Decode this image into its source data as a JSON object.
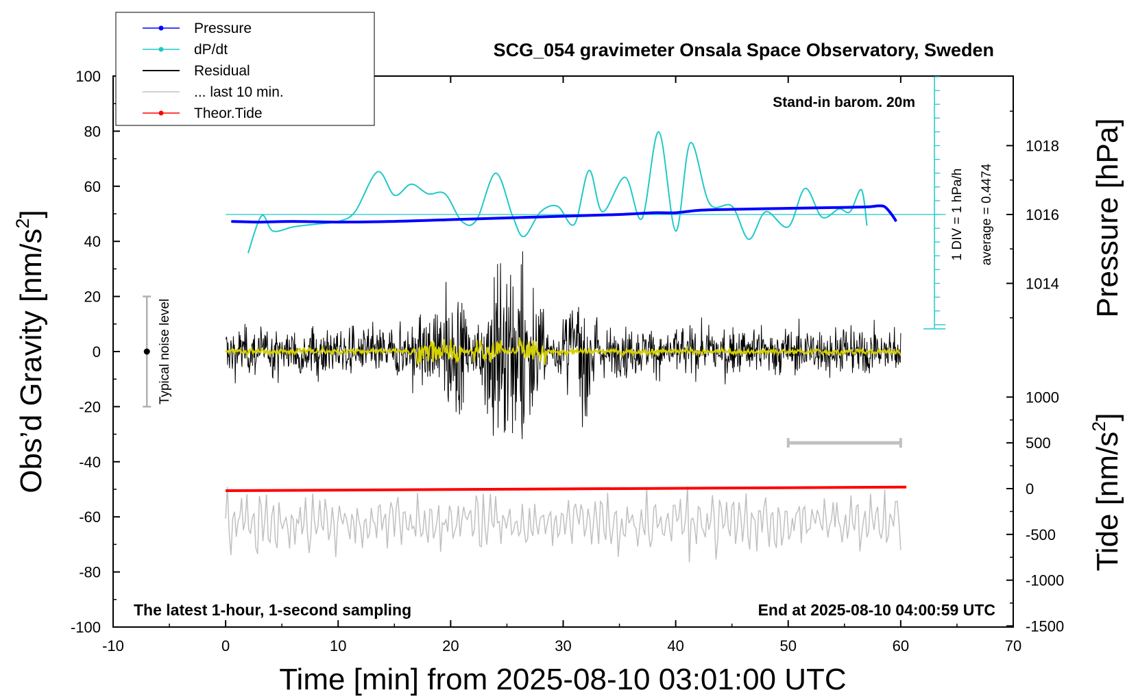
{
  "chart_data": {
    "type": "line",
    "title": "SCG_054 gravimeter Onsala Space Observatory, Sweden",
    "xlabel": "Time [min] from 2025-08-10 03:01:00 UTC",
    "ylabel_left_main": "Obs’d Gravity [nm/s",
    "ylabel_left_sup": "2",
    "ylabel_left_end": "]",
    "ylabel_right_top": "Pressure [hPa]",
    "ylabel_right_bottom_main": "Tide [nm/s",
    "ylabel_right_bottom_sup": "2",
    "ylabel_right_bottom_end": "]",
    "xlim": [
      -10,
      70
    ],
    "ylim": [
      -100,
      100
    ],
    "x_ticks": [
      "-10",
      "0",
      "10",
      "20",
      "30",
      "40",
      "50",
      "60",
      "70"
    ],
    "y_ticks": [
      "100",
      "80",
      "60",
      "40",
      "20",
      "0",
      "-20",
      "-40",
      "-60",
      "-80",
      "-100"
    ],
    "pressure_ticks": [
      "1018",
      "1016",
      "1014"
    ],
    "tide_ticks": [
      "1000",
      "500",
      "0",
      "-500",
      "-1000",
      "-1500"
    ],
    "grid": false,
    "legend_position": "top-left",
    "legend": [
      {
        "name": "Pressure",
        "color": "#0000ff",
        "marker": true
      },
      {
        "name": "dP/dt",
        "color": "#1fc8c8",
        "marker": true
      },
      {
        "name": "Residual",
        "color": "#000000",
        "marker": false
      },
      {
        "name": "... last 10 min.",
        "color": "#c0c0c0",
        "marker": false
      },
      {
        "name": "Theor.Tide",
        "color": "#ff0000",
        "marker": true
      }
    ],
    "annotations": {
      "stand_in": "Stand-in barom. 20m",
      "div_label": "1 DIV = 1 hPa/h",
      "average_label": "average = 0.4474",
      "noise_label": "Typical noise level",
      "bottom_left": "The latest 1-hour, 1-second sampling",
      "bottom_right": "End at 2025-08-10 04:00:59 UTC"
    },
    "noise_bar": {
      "x": -7,
      "center": 0,
      "range": [
        -20,
        20
      ]
    },
    "last10_bar": {
      "range_min": [
        50,
        60
      ],
      "tide_level": 500
    },
    "dpdt_axis": {
      "x": 63,
      "average": 0.4474,
      "unit": "hPa/h per division"
    },
    "series": [
      {
        "name": "Pressure",
        "color": "#0000ff",
        "units": "hPa",
        "x": [
          0.5,
          3,
          6,
          10,
          15,
          20,
          25,
          30,
          35,
          38,
          40,
          42,
          45,
          50,
          54,
          57,
          58,
          58.6,
          59.2,
          59.6
        ],
        "values": [
          1015.8,
          1015.78,
          1015.8,
          1015.78,
          1015.8,
          1015.85,
          1015.9,
          1015.95,
          1016.0,
          1016.05,
          1016.05,
          1016.12,
          1016.15,
          1016.18,
          1016.2,
          1016.22,
          1016.25,
          1016.22,
          1016.0,
          1015.8
        ]
      },
      {
        "name": "dP/dt",
        "color": "#1fc8c8",
        "units": "hPa/h",
        "x": [
          2,
          3.2,
          4.2,
          6,
          8,
          10,
          11.5,
          13.5,
          15,
          16.5,
          18,
          19.5,
          21,
          22.3,
          24,
          25.5,
          26.5,
          28,
          29.5,
          31,
          32.3,
          33.5,
          35.5,
          37,
          38.5,
          40,
          41.3,
          43,
          45,
          46.5,
          48,
          50,
          51.5,
          53,
          54.5,
          55.5,
          56.5,
          57
        ],
        "values": [
          -2.8,
          -0.1,
          -1.2,
          -0.9,
          -0.7,
          -0.5,
          0.2,
          3.1,
          1.4,
          2.2,
          1.5,
          1.5,
          -0.5,
          -0.4,
          3.0,
          -0.1,
          -1.6,
          0.2,
          0.6,
          -0.7,
          3.2,
          0.2,
          2.7,
          -0.3,
          6.0,
          -1.2,
          5.2,
          0.8,
          0.6,
          -1.8,
          0.2,
          -0.9,
          1.9,
          -0.2,
          0.4,
          0.2,
          1.8,
          -0.8
        ]
      },
      {
        "name": "Residual",
        "color": "#000000",
        "units": "nm/s^2",
        "x": [
          0,
          60
        ],
        "values": [
          0,
          0
        ],
        "envelope_peaks": {
          "x": [
            17.5,
            20,
            24.5,
            26.5,
            31.5
          ],
          "amplitude": [
            18,
            25,
            45,
            40,
            30
          ]
        }
      },
      {
        "name": "... last 10 min.",
        "color": "#c0c0c0",
        "units": "nm/s^2",
        "x": [
          0,
          60
        ],
        "values": [
          -62,
          -62
        ],
        "x_note": "replotted last 10 minutes stretched across the full window"
      },
      {
        "name": "Theor.Tide",
        "color": "#ff0000",
        "units": "nm/s^2",
        "x": [
          0,
          60.5
        ],
        "values": [
          -50.5,
          -49.2
        ]
      }
    ]
  }
}
